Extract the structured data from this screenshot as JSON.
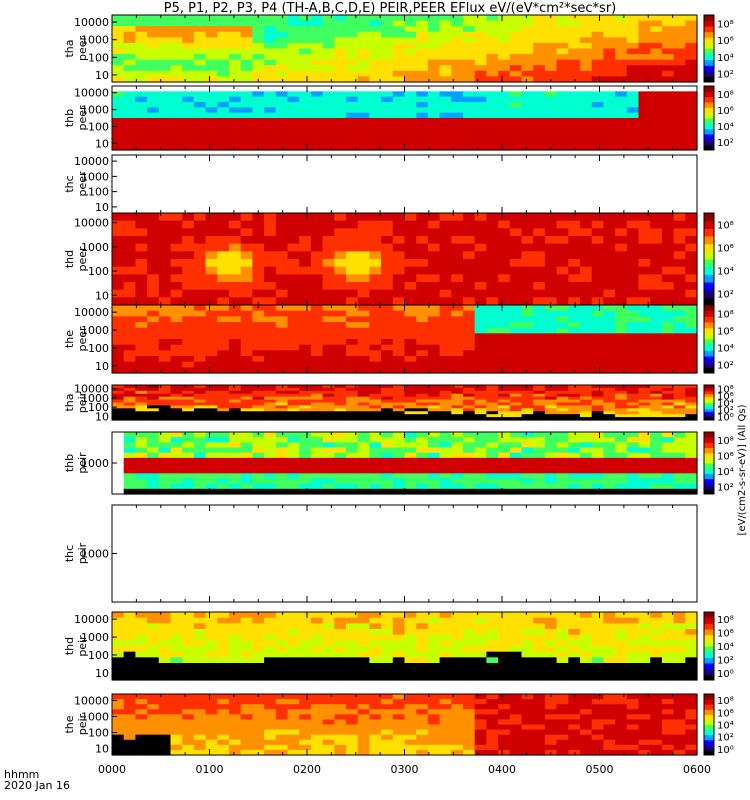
{
  "title": "P5, P1, P2, P3, P4 (TH-A,B,C,D,E) PEIR,PEER EFlux eV/(eV*cm²*sec*sr)",
  "stamp": {
    "line1": "hhmm",
    "line2": "2020 Jan 16"
  },
  "time_ticks": [
    "0000",
    "0100",
    "0200",
    "0300",
    "0400",
    "0500",
    "0600"
  ],
  "colorbar_side_label": "[eV/(cm2-s-sr-eV)] (All Qs)",
  "chart_data": [
    {
      "type": "heatmap",
      "probe": "tha",
      "instrument": "peer",
      "ylabel": [
        "tha",
        "peer"
      ],
      "yscale": "log",
      "yticks": [
        "10",
        "100",
        "1000",
        "10000"
      ],
      "colorbar": [
        "10²",
        "10⁴",
        "10⁶",
        "10⁸"
      ],
      "has_data": true
    },
    {
      "type": "heatmap",
      "probe": "thb",
      "instrument": "peer",
      "ylabel": [
        "thb",
        "peer"
      ],
      "yscale": "log",
      "yticks": [
        "10",
        "100",
        "1000",
        "10000"
      ],
      "colorbar": [
        "10²",
        "10⁴",
        "10⁶",
        "10⁸"
      ],
      "has_data": true
    },
    {
      "type": "heatmap",
      "probe": "thc",
      "instrument": "peer",
      "ylabel": [
        "thc",
        "peer"
      ],
      "yscale": "log",
      "yticks": [
        "10",
        "100",
        "1000",
        "10000"
      ],
      "colorbar": [],
      "has_data": false
    },
    {
      "type": "heatmap",
      "probe": "thd",
      "instrument": "peer",
      "ylabel": [
        "thd",
        "peer"
      ],
      "yscale": "log",
      "yticks": [
        "10",
        "100",
        "1000",
        "10000"
      ],
      "colorbar": [
        "10²",
        "10⁴",
        "10⁶",
        "10⁸"
      ],
      "has_data": true
    },
    {
      "type": "heatmap",
      "probe": "the",
      "instrument": "peer",
      "ylabel": [
        "the",
        "peer"
      ],
      "yscale": "log",
      "yticks": [
        "10",
        "100",
        "1000",
        "10000"
      ],
      "colorbar": [
        "10²",
        "10⁴",
        "10⁶",
        "10⁸"
      ],
      "has_data": true
    },
    {
      "type": "heatmap",
      "probe": "tha",
      "instrument": "peir",
      "ylabel": [
        "tha",
        "peir"
      ],
      "yscale": "log",
      "yticks": [
        "10",
        "100",
        "1000",
        "10000"
      ],
      "colorbar": [
        "10⁰",
        "10²",
        "10⁴",
        "10⁶",
        "10⁸"
      ],
      "has_data": true
    },
    {
      "type": "heatmap",
      "probe": "thb",
      "instrument": "peir",
      "ylabel": [
        "thb",
        "peir"
      ],
      "yscale": "log",
      "yticks": [
        "1000"
      ],
      "colorbar": [
        "10²",
        "10⁴",
        "10⁶",
        "10⁸"
      ],
      "has_data": true
    },
    {
      "type": "heatmap",
      "probe": "thc",
      "instrument": "peir",
      "ylabel": [
        "thc",
        "peir"
      ],
      "yscale": "log",
      "yticks": [
        "1000"
      ],
      "colorbar": [],
      "has_data": false
    },
    {
      "type": "heatmap",
      "probe": "thd",
      "instrument": "peir",
      "ylabel": [
        "thd",
        "peir"
      ],
      "yscale": "log",
      "yticks": [
        "10",
        "100",
        "1000",
        "10000"
      ],
      "colorbar": [
        "10⁰",
        "10²",
        "10⁴",
        "10⁶",
        "10⁸"
      ],
      "has_data": true
    },
    {
      "type": "heatmap",
      "probe": "the",
      "instrument": "peir",
      "ylabel": [
        "the",
        "peir"
      ],
      "yscale": "log",
      "yticks": [
        "10",
        "100",
        "1000",
        "10000"
      ],
      "colorbar": [
        "10⁰",
        "10²",
        "10⁴",
        "10⁶",
        "10⁸"
      ],
      "has_data": true
    }
  ]
}
